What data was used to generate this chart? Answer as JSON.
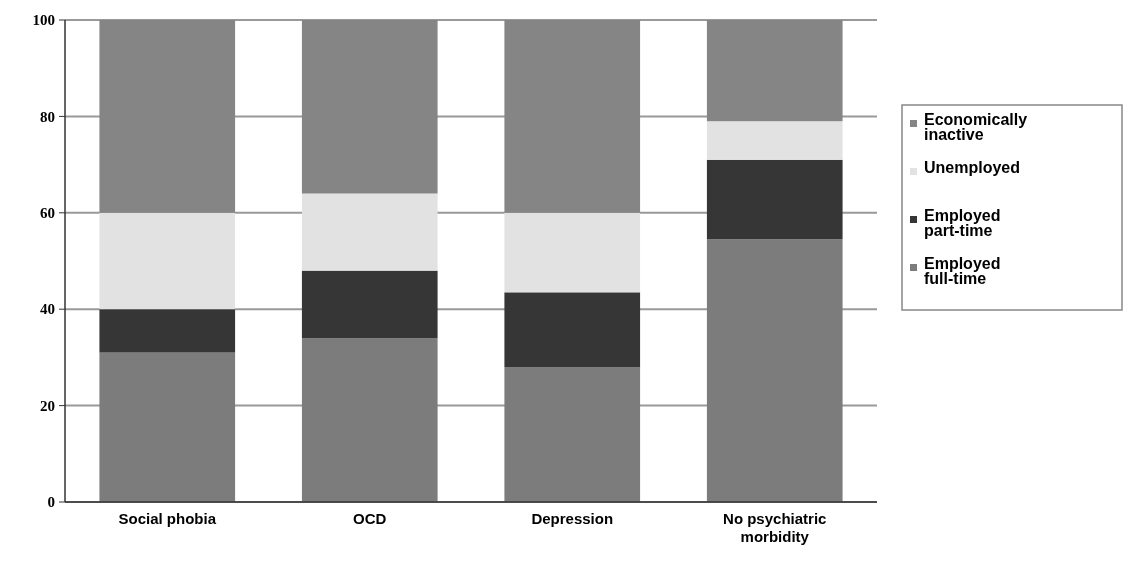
{
  "chart_data": {
    "type": "bar",
    "stacked": true,
    "categories": [
      "Social phobia",
      "OCD",
      "Depression",
      "No psychiatric morbidity"
    ],
    "series": [
      {
        "name": "Employed full-time",
        "color": "#7c7c7c",
        "values": [
          31,
          34,
          28,
          54.5
        ]
      },
      {
        "name": "Employed part-time",
        "color": "#363636",
        "values": [
          9,
          14,
          15.5,
          16.5
        ]
      },
      {
        "name": "Unemployed",
        "color": "#e2e2e2",
        "values": [
          20,
          16,
          16.5,
          8
        ]
      },
      {
        "name": "Economically inactive",
        "color": "#858585",
        "values": [
          40,
          36,
          40,
          21
        ]
      }
    ],
    "ylim": [
      0,
      100
    ],
    "yticks": [
      0,
      20,
      40,
      60,
      80,
      100
    ],
    "grid": "y",
    "legend": "right"
  }
}
